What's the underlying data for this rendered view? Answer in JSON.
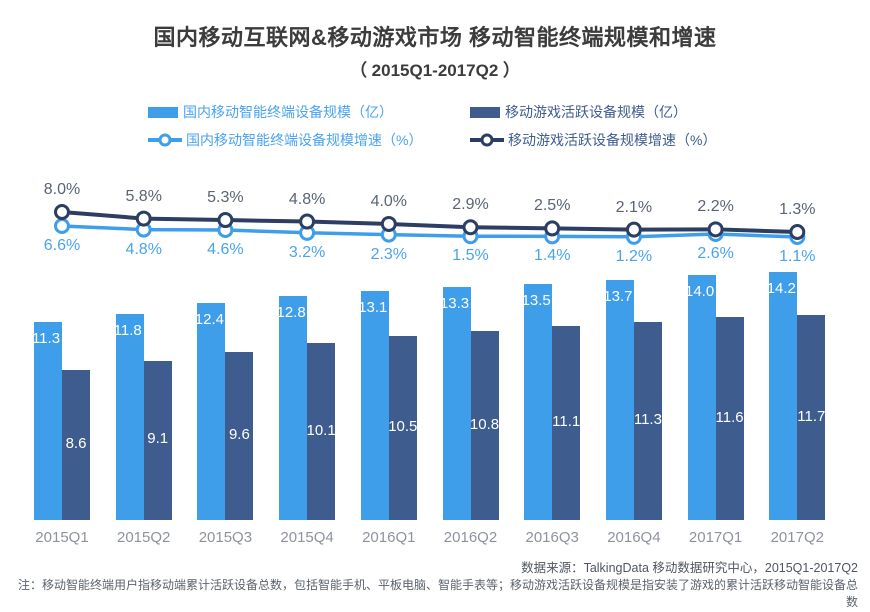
{
  "title": "国内移动互联网&移动游戏市场 移动智能终端规模和增速",
  "subtitle": "（ 2015Q1-2017Q2 ）",
  "legend": {
    "bar_terminal": "国内移动智能终端设备规模（亿）",
    "bar_game": "移动游戏活跃设备规模（亿）",
    "line_terminal": "国内移动智能终端设备规模增速（%）",
    "line_game": "移动游戏活跃设备规模增速（%）"
  },
  "colors": {
    "light_blue": "#3f9eea",
    "dark_blue": "#3e5c8e",
    "dark_line": "#2c3e63",
    "pct_dark_text": "#596475",
    "pct_light_text": "#4aa3ee",
    "axis_text": "#8d939e"
  },
  "chart_data": {
    "type": "bar",
    "title": "国内移动互联网&移动游戏市场 移动智能终端规模和增速（2015Q1-2017Q2）",
    "categories": [
      "2015Q1",
      "2015Q2",
      "2015Q3",
      "2015Q4",
      "2016Q1",
      "2016Q2",
      "2016Q3",
      "2016Q4",
      "2017Q1",
      "2017Q2"
    ],
    "series": [
      {
        "name": "国内移动智能终端设备规模（亿）",
        "type": "bar",
        "values": [
          11.3,
          11.8,
          12.4,
          12.8,
          13.1,
          13.3,
          13.5,
          13.7,
          14.0,
          14.2
        ]
      },
      {
        "name": "移动游戏活跃设备规模（亿）",
        "type": "bar",
        "values": [
          8.6,
          9.1,
          9.6,
          10.1,
          10.5,
          10.8,
          11.1,
          11.3,
          11.6,
          11.7
        ]
      },
      {
        "name": "国内移动智能终端设备规模增速（%）",
        "type": "line",
        "values": [
          6.6,
          4.8,
          4.6,
          3.2,
          2.3,
          1.5,
          1.4,
          1.2,
          2.6,
          1.1
        ]
      },
      {
        "name": "移动游戏活跃设备规模增速（%）",
        "type": "line",
        "values": [
          8.0,
          5.8,
          5.3,
          4.8,
          4.0,
          2.9,
          2.5,
          2.1,
          2.2,
          1.3
        ]
      }
    ],
    "value_unit": "亿",
    "growth_unit": "%",
    "legend_position": "top",
    "grid": false
  },
  "footer": {
    "source": "数据来源：TalkingData 移动数据研究中心，2015Q1-2017Q2",
    "note": "注：移动智能终端用户指移动端累计活跃设备总数，包括智能手机、平板电脑、智能手表等；移动游戏活跃设备规模是指安装了游戏的累计活跃移动智能设备总数"
  }
}
